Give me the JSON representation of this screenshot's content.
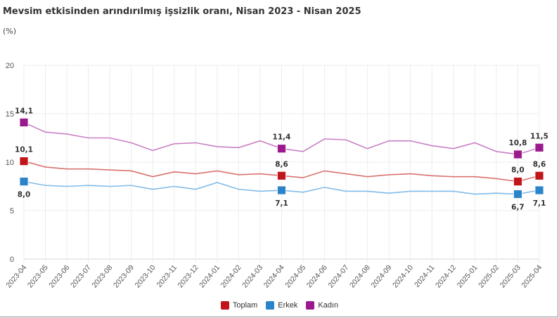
{
  "chart_data": {
    "type": "line",
    "title": "Mevsim etkisinden arındırılmış işsizlik oranı, Nisan 2023 - Nisan 2025",
    "ylabel": "(%)",
    "xlabel": "",
    "ylim": [
      0,
      20
    ],
    "yticks": [
      0,
      5,
      10,
      15,
      20
    ],
    "grid": true,
    "legend_position": "bottom",
    "categories": [
      "2023-04",
      "2023-05",
      "2023-06",
      "2023-07",
      "2023-08",
      "2023-09",
      "2023-10",
      "2023-11",
      "2023-12",
      "2024-01",
      "2024-02",
      "2024-03",
      "2024-04",
      "2024-05",
      "2024-06",
      "2024-07",
      "2024-08",
      "2024-09",
      "2024-10",
      "2024-11",
      "2024-12",
      "2025-01",
      "2025-02",
      "2025-03",
      "2025-04"
    ],
    "series": [
      {
        "name": "Toplam",
        "color": "#c0161b",
        "line_color": "#d9726e",
        "label_pos": "above",
        "values": [
          10.1,
          9.5,
          9.3,
          9.3,
          9.2,
          9.1,
          8.5,
          9.0,
          8.8,
          9.1,
          8.7,
          8.8,
          8.6,
          8.4,
          9.1,
          8.8,
          8.5,
          8.7,
          8.8,
          8.6,
          8.5,
          8.5,
          8.3,
          8.0,
          8.6
        ]
      },
      {
        "name": "Erkek",
        "color": "#2b84c8",
        "line_color": "#80bbe8",
        "label_pos": "below",
        "values": [
          8.0,
          7.6,
          7.5,
          7.6,
          7.5,
          7.6,
          7.2,
          7.5,
          7.2,
          7.9,
          7.2,
          7.0,
          7.1,
          6.9,
          7.4,
          7.0,
          7.0,
          6.8,
          7.0,
          7.0,
          7.0,
          6.7,
          6.8,
          6.7,
          7.1
        ]
      },
      {
        "name": "Kadın",
        "color": "#9a1a8e",
        "line_color": "#c97fc5",
        "label_pos": "above",
        "values": [
          14.1,
          13.1,
          12.9,
          12.5,
          12.5,
          12.0,
          11.2,
          11.9,
          12.0,
          11.6,
          11.5,
          12.2,
          11.4,
          11.1,
          12.4,
          12.3,
          11.4,
          12.2,
          12.2,
          11.7,
          11.4,
          12.0,
          11.1,
          10.8,
          11.5
        ]
      }
    ],
    "data_labels": {
      "Toplam": {
        "0": "10,1",
        "12": "8,6",
        "23": "8,0",
        "24": "8,6"
      },
      "Erkek": {
        "0": "8,0",
        "12": "7,1",
        "23": "6,7",
        "24": "7,1"
      },
      "Kadın": {
        "0": "14,1",
        "12": "11,4",
        "23": "10,8",
        "24": "11,5"
      }
    },
    "highlighted_points": [
      0,
      12,
      23,
      24
    ]
  }
}
